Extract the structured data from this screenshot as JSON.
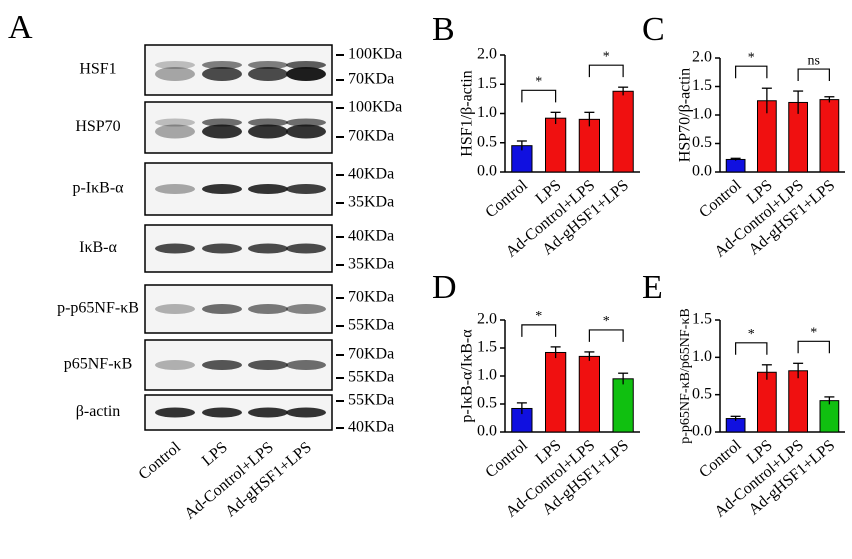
{
  "blot": {
    "panel_label": "A",
    "rows": [
      {
        "label": "HSF1",
        "markers": [
          "100KDa",
          "70KDa"
        ]
      },
      {
        "label": "HSP70",
        "markers": [
          "100KDa",
          "70KDa"
        ]
      },
      {
        "label": "p-IκB-α",
        "markers": [
          "40KDa",
          "35KDa"
        ]
      },
      {
        "label": "IκB-α",
        "markers": [
          "40KDa",
          "35KDa"
        ]
      },
      {
        "label": "p-p65NF-κB",
        "markers": [
          "70KDa",
          "55KDa"
        ]
      },
      {
        "label": "p65NF-κB",
        "markers": [
          "70KDa",
          "55KDa"
        ]
      },
      {
        "label": "β-actin",
        "markers": [
          "55KDa",
          "40KDa"
        ]
      }
    ],
    "lanes": [
      "Control",
      "LPS",
      "Ad-Control+LPS",
      "Ad-gHSF1+LPS"
    ]
  },
  "chart_data": [
    {
      "type": "bar",
      "panel_label": "B",
      "y_label": "HSF1/β-actin",
      "categories": [
        "Control",
        "LPS",
        "Ad-Control+LPS",
        "Ad-gHSF1+LPS"
      ],
      "values": [
        0.45,
        0.92,
        0.9,
        1.38
      ],
      "errors": [
        0.08,
        0.1,
        0.12,
        0.07
      ],
      "colors": [
        "#1010e0",
        "#f01010",
        "#f01010",
        "#f01010"
      ],
      "ylim": [
        0,
        2
      ],
      "yticks": [
        {
          "value": 0,
          "label": "0.0"
        },
        0.5,
        {
          "value": 1,
          "label": "1.0"
        },
        1.5,
        {
          "value": 2,
          "label": "2.0"
        }
      ],
      "pairs": [
        [
          0,
          1
        ],
        [
          2,
          3
        ]
      ],
      "pair_labels": [
        "*",
        "*"
      ]
    },
    {
      "type": "bar",
      "panel_label": "C",
      "y_label": "HSP70/β-actin",
      "categories": [
        "Control",
        "LPS",
        "Ad-Control+LPS",
        "Ad-gHSF1+LPS"
      ],
      "values": [
        0.22,
        1.25,
        1.22,
        1.27
      ],
      "errors": [
        0.02,
        0.22,
        0.2,
        0.05
      ],
      "colors": [
        "#1010e0",
        "#f01010",
        "#f01010",
        "#f01010"
      ],
      "ylim": [
        0,
        2
      ],
      "yticks": [
        {
          "value": 0,
          "label": "0.0"
        },
        0.5,
        {
          "value": 1,
          "label": "1.0"
        },
        1.5,
        {
          "value": 2,
          "label": "2.0"
        }
      ],
      "pairs": [
        [
          0,
          1
        ],
        [
          2,
          3
        ]
      ],
      "pair_labels": [
        "*",
        "ns"
      ]
    },
    {
      "type": "bar",
      "panel_label": "D",
      "y_label": "p-IκB-α/IκB-α",
      "categories": [
        "Control",
        "LPS",
        "Ad-Control+LPS",
        "Ad-gHSF1+LPS"
      ],
      "values": [
        0.42,
        1.42,
        1.35,
        0.95
      ],
      "errors": [
        0.1,
        0.1,
        0.08,
        0.1
      ],
      "colors": [
        "#1010e0",
        "#f01010",
        "#f01010",
        "#10c010"
      ],
      "ylim": [
        0,
        2
      ],
      "yticks": [
        {
          "value": 0,
          "label": "0.0"
        },
        0.5,
        {
          "value": 1,
          "label": "1.0"
        },
        1.5,
        {
          "value": 2,
          "label": "2.0"
        }
      ],
      "pairs": [
        [
          0,
          1
        ],
        [
          2,
          3
        ]
      ],
      "pair_labels": [
        "*",
        "*"
      ]
    },
    {
      "type": "bar",
      "panel_label": "E",
      "y_label": "p-p65NF-κB/p65NF-κB",
      "categories": [
        "Control",
        "LPS",
        "Ad-Control+LPS",
        "Ad-gHSF1+LPS"
      ],
      "values": [
        0.18,
        0.8,
        0.82,
        0.42
      ],
      "errors": [
        0.03,
        0.1,
        0.1,
        0.05
      ],
      "colors": [
        "#1010e0",
        "#f01010",
        "#f01010",
        "#10c010"
      ],
      "ylim": [
        0,
        1.5
      ],
      "yticks": [
        {
          "value": 0,
          "label": "0.0"
        },
        0.5,
        {
          "value": 1,
          "label": "1.0"
        },
        1.5
      ],
      "pairs": [
        [
          0,
          1
        ],
        [
          2,
          3
        ]
      ],
      "pair_labels": [
        "*",
        "*"
      ]
    }
  ]
}
